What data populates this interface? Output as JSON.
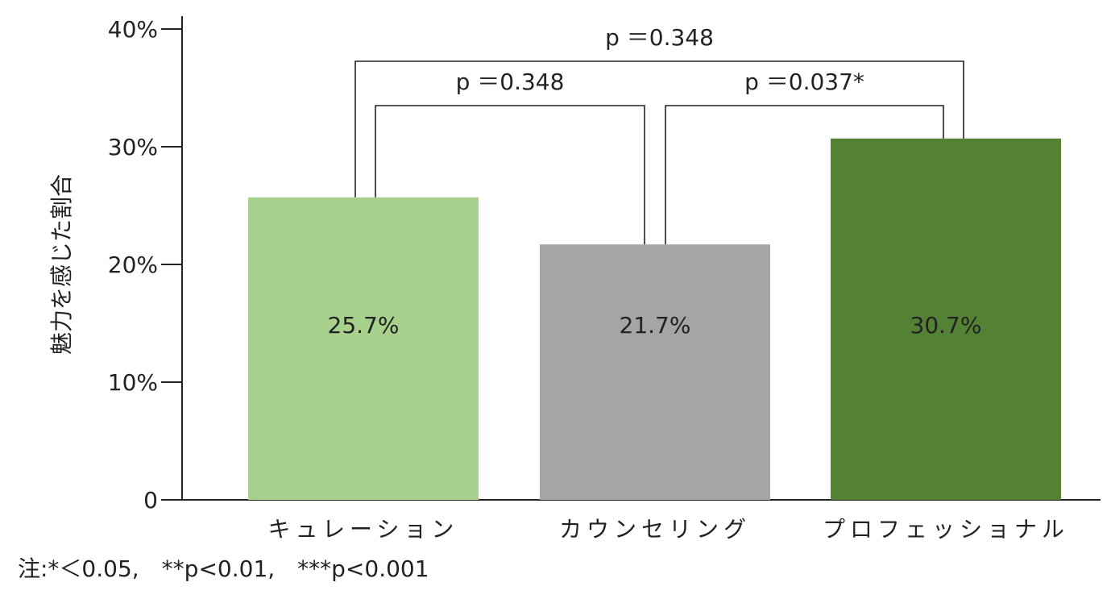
{
  "chart_data": {
    "type": "bar",
    "y_label": "魅力を感じた割合",
    "categories": [
      "キュレーション",
      "カウンセリング",
      "プロフェッショナル"
    ],
    "values": [
      25.7,
      21.7,
      30.7
    ],
    "value_labels": [
      "25.7%",
      "21.7%",
      "30.7%"
    ],
    "colors": [
      "#a9d18e",
      "#a5a5a5",
      "#548235"
    ],
    "ylim": [
      0,
      40
    ],
    "yticks": [
      0,
      {
        "value": 10,
        "label": "10%"
      },
      {
        "value": 20,
        "label": "20%"
      },
      {
        "value": 30,
        "label": "30%"
      },
      {
        "value": 40,
        "label": "40%"
      }
    ],
    "grid": false,
    "annotations": [
      {
        "text": "p ＝0.348",
        "between": [
          0,
          1
        ]
      },
      {
        "text": "p ＝0.037*",
        "between": [
          1,
          2
        ]
      },
      {
        "text": "p ＝0.348",
        "between": [
          0,
          2
        ]
      }
    ],
    "footnote": "注:*＜0.05,　**p<0.01,　***p<0.001"
  }
}
